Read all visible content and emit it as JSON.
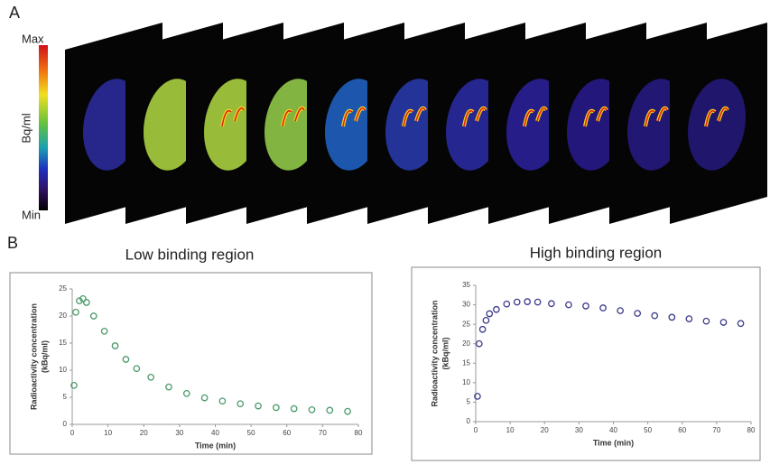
{
  "panel_labels": [
    "A",
    "B"
  ],
  "colorbar": {
    "max_label": "Max",
    "min_label": "Min",
    "unit_label": "Bq/ml"
  },
  "chart_data": [
    {
      "type": "scatter",
      "title": "Low binding region",
      "x_label": "Time (min)",
      "y_label": [
        "Radioactivity concentration",
        "(kBq/ml)"
      ],
      "x": [
        0.5,
        1,
        2,
        3,
        4,
        6,
        9,
        12,
        15,
        18,
        22,
        27,
        32,
        37,
        42,
        47,
        52,
        57,
        62,
        67,
        72,
        77
      ],
      "values": [
        7.2,
        20.7,
        22.8,
        23.2,
        22.5,
        20,
        17.2,
        14.5,
        12,
        10.3,
        8.7,
        6.9,
        5.7,
        4.9,
        4.3,
        3.8,
        3.4,
        3.1,
        2.9,
        2.7,
        2.6,
        2.4
      ],
      "color": "#4a9a6a",
      "xlim": [
        0,
        80
      ],
      "xticks": [
        0,
        10,
        20,
        30,
        40,
        50,
        60,
        70,
        80
      ],
      "ylim": [
        0,
        25
      ],
      "yticks": [
        0,
        5,
        10,
        15,
        20,
        25
      ]
    },
    {
      "type": "scatter",
      "title": "High binding region",
      "x_label": "Time (min)",
      "y_label": [
        "Radioactivity concentration",
        "(kBq/ml)"
      ],
      "x": [
        0.5,
        1,
        2,
        3,
        4,
        6,
        9,
        12,
        15,
        18,
        22,
        27,
        32,
        37,
        42,
        47,
        52,
        57,
        62,
        67,
        72,
        77
      ],
      "values": [
        6.5,
        20,
        23.7,
        26,
        27.7,
        28.8,
        30.2,
        30.7,
        30.8,
        30.7,
        30.3,
        30,
        29.7,
        29.2,
        28.5,
        27.8,
        27.2,
        26.8,
        26.4,
        25.8,
        25.5,
        25.2
      ],
      "color": "#3a3a8a",
      "xlim": [
        0,
        80
      ],
      "xticks": [
        0,
        10,
        20,
        30,
        40,
        50,
        60,
        70,
        80
      ],
      "ylim": [
        0,
        35
      ],
      "yticks": [
        0,
        5,
        10,
        15,
        20,
        25,
        30,
        35
      ]
    }
  ]
}
